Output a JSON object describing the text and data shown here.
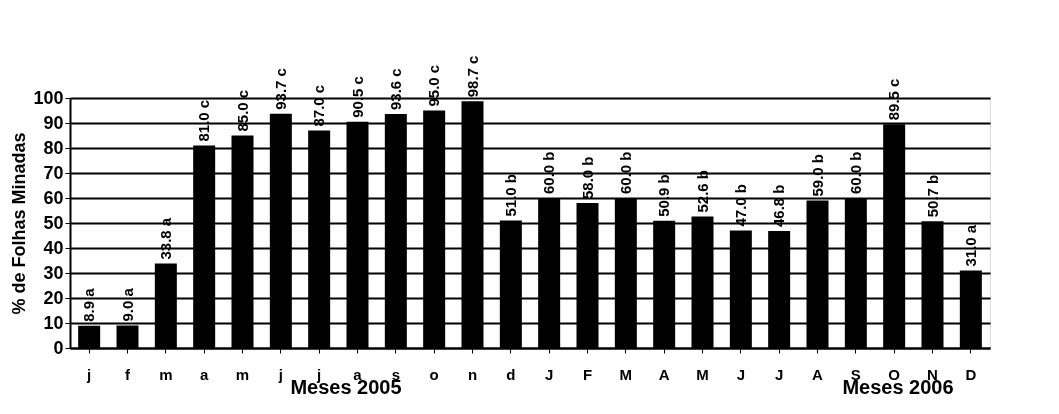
{
  "chart_data": {
    "type": "bar",
    "ylabel": "% de Folhas Minadas",
    "xlabel": "Meses 2005",
    "annotations": [
      "Meses 2006"
    ],
    "categories": [
      "j",
      "f",
      "m",
      "a",
      "m",
      "j",
      "j",
      "a",
      "s",
      "o",
      "n",
      "d",
      "J",
      "F",
      "M",
      "A",
      "M",
      "J",
      "J",
      "A",
      "S",
      "O",
      "N",
      "D"
    ],
    "values": [
      8.9,
      9.0,
      33.8,
      81.0,
      85.0,
      93.7,
      87.0,
      90.5,
      93.6,
      95.0,
      98.7,
      51.0,
      60.0,
      58.0,
      60.0,
      50.9,
      52.6,
      47.0,
      46.8,
      59.0,
      60.0,
      89.5,
      50.7,
      31.0
    ],
    "value_labels": [
      "8.9 a",
      "9.0 a",
      "33.8 a",
      "81.0 c",
      "85.0 c",
      "93.7 c",
      "87.0 c",
      "90.5 c",
      "93.6 c",
      "95.0 c",
      "98.7 c",
      "51.0 b",
      "60.0 b",
      "58.0 b",
      "60.0 b",
      "50.9 b",
      "52.6 b",
      "47.0 b",
      "46.8 b",
      "59.0 b",
      "60.0 b",
      "89.5 c",
      "50.7 b",
      "31.0 a"
    ],
    "color": "#000000",
    "ylim": [
      0,
      100
    ],
    "yticks": [
      0,
      10,
      20,
      30,
      40,
      50,
      60,
      70,
      80,
      90,
      100
    ],
    "grid": "y"
  }
}
